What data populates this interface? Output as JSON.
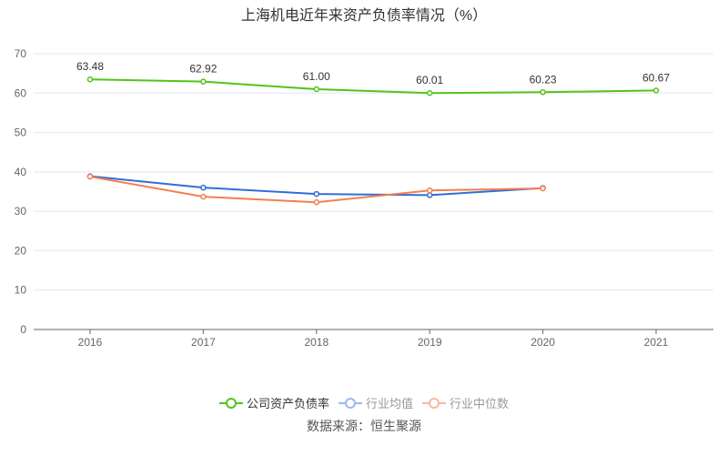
{
  "chart_data": {
    "type": "line",
    "title": "上海机电近年来资产负债率情况（%）",
    "categories": [
      "2016",
      "2017",
      "2018",
      "2019",
      "2020",
      "2021"
    ],
    "ylim": [
      0,
      70
    ],
    "yticks": [
      0,
      10,
      20,
      30,
      40,
      50,
      60,
      70
    ],
    "grid": true,
    "legend_position": "bottom",
    "series": [
      {
        "name": "公司资产负债率",
        "color": "#52c41a",
        "legend_color": "#52c41a",
        "text_color": "#333",
        "values": [
          63.48,
          62.92,
          61.0,
          60.01,
          60.23,
          60.67
        ],
        "labels": [
          "63.48",
          "62.92",
          "61.00",
          "60.01",
          "60.23",
          "60.67"
        ]
      },
      {
        "name": "行业均值",
        "color": "#2f6ed8",
        "legend_color": "#9bb8f0",
        "text_color": "#999",
        "values": [
          38.9,
          36.0,
          34.4,
          34.1,
          35.9,
          null
        ]
      },
      {
        "name": "行业中位数",
        "color": "#f47f4e",
        "legend_color": "#f7b9a0",
        "text_color": "#999",
        "values": [
          38.8,
          33.7,
          32.3,
          35.3,
          35.8,
          null
        ]
      }
    ]
  },
  "source": "数据来源：恒生聚源"
}
